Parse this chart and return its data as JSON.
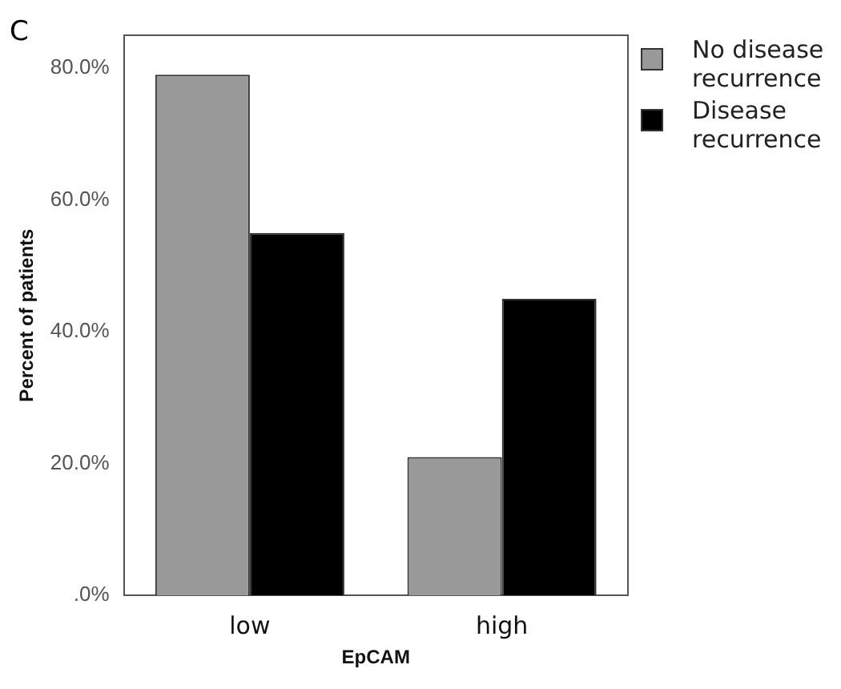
{
  "chart_data": {
    "type": "bar",
    "xlabel": "EpCAM",
    "ylabel": "Percent of patients",
    "categories": [
      "low",
      "high"
    ],
    "series": [
      {
        "name": "No disease recurrence",
        "color": "#999999",
        "values": [
          79,
          21
        ]
      },
      {
        "name": "Disease recurrence",
        "color": "#000000",
        "values": [
          55,
          45
        ]
      }
    ],
    "ylim": [
      0,
      85
    ],
    "yticks": [
      {
        "value": 0,
        "label": ".0%"
      },
      {
        "value": 20,
        "label": "20.0%"
      },
      {
        "value": 40,
        "label": "40.0%"
      },
      {
        "value": 60,
        "label": "60.0%"
      },
      {
        "value": 80,
        "label": "80.0%"
      }
    ],
    "grid": false,
    "legend": "top right",
    "annotations": [
      "C"
    ]
  }
}
